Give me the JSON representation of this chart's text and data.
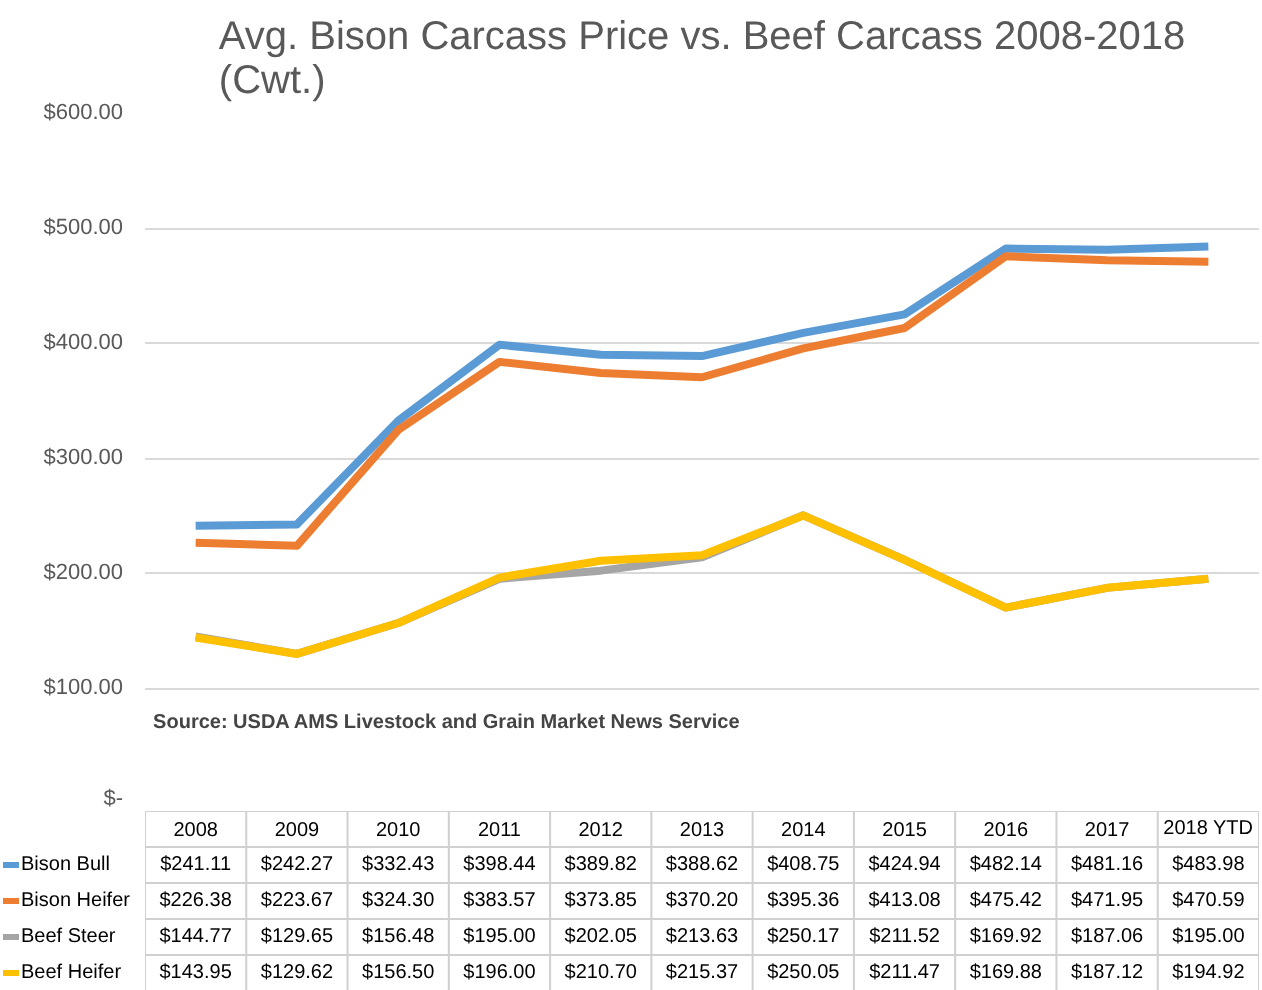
{
  "chart_data": {
    "type": "line",
    "title": "Avg. Bison Carcass Price vs. Beef Carcass 2008-2018\n(Cwt.)",
    "categories": [
      "2008",
      "2009",
      "2010",
      "2011",
      "2012",
      "2013",
      "2014",
      "2015",
      "2016",
      "2017",
      "2018 YTD"
    ],
    "series": [
      {
        "name": "Bison Bull",
        "color": "#5b9bd5",
        "values": [
          241.11,
          242.27,
          332.43,
          398.44,
          389.82,
          388.62,
          408.75,
          424.94,
          482.14,
          481.16,
          483.98
        ],
        "value_labels": [
          "$241.11",
          "$242.27",
          "$332.43",
          "$398.44",
          "$389.82",
          "$388.62",
          "$408.75",
          "$424.94",
          "$482.14",
          "$481.16",
          "$483.98"
        ]
      },
      {
        "name": "Bison Heifer",
        "color": "#ed7d31",
        "values": [
          226.38,
          223.67,
          324.3,
          383.57,
          373.85,
          370.2,
          395.36,
          413.08,
          475.42,
          471.95,
          470.59
        ],
        "value_labels": [
          "$226.38",
          "$223.67",
          "$324.30",
          "$383.57",
          "$373.85",
          "$370.20",
          "$395.36",
          "$413.08",
          "$475.42",
          "$471.95",
          "$470.59"
        ]
      },
      {
        "name": "Beef Steer",
        "color": "#a5a5a5",
        "values": [
          144.77,
          129.65,
          156.48,
          195.0,
          202.05,
          213.63,
          250.17,
          211.52,
          169.92,
          187.06,
          195.0
        ],
        "value_labels": [
          "$144.77",
          "$129.65",
          "$156.48",
          "$195.00",
          "$202.05",
          "$213.63",
          "$250.17",
          "$211.52",
          "$169.92",
          "$187.06",
          "$195.00"
        ]
      },
      {
        "name": "Beef Heifer",
        "color": "#ffc000",
        "values": [
          143.95,
          129.62,
          156.5,
          196.0,
          210.7,
          215.37,
          250.05,
          211.47,
          169.88,
          187.12,
          194.92
        ],
        "value_labels": [
          "$143.95",
          "$129.62",
          "$156.50",
          "$196.00",
          "$210.70",
          "$215.37",
          "$250.05",
          "$211.47",
          "$169.88",
          "$187.12",
          "$194.92"
        ]
      }
    ],
    "ylim": [
      0,
      600
    ],
    "yticks": [
      {
        "value": 0,
        "label": "$-"
      },
      {
        "value": 100,
        "label": "$100.00"
      },
      {
        "value": 200,
        "label": "$200.00"
      },
      {
        "value": 300,
        "label": "$300.00"
      },
      {
        "value": 400,
        "label": "$400.00"
      },
      {
        "value": 500,
        "label": "$500.00"
      },
      {
        "value": 600,
        "label": "$600.00"
      }
    ],
    "grid": "y",
    "legend": "bottom",
    "tick_labels": "y",
    "marker": "none",
    "line_style": "solid",
    "annotations": [
      "Source: USDA AMS Livestock and Grain Market News Service"
    ]
  }
}
